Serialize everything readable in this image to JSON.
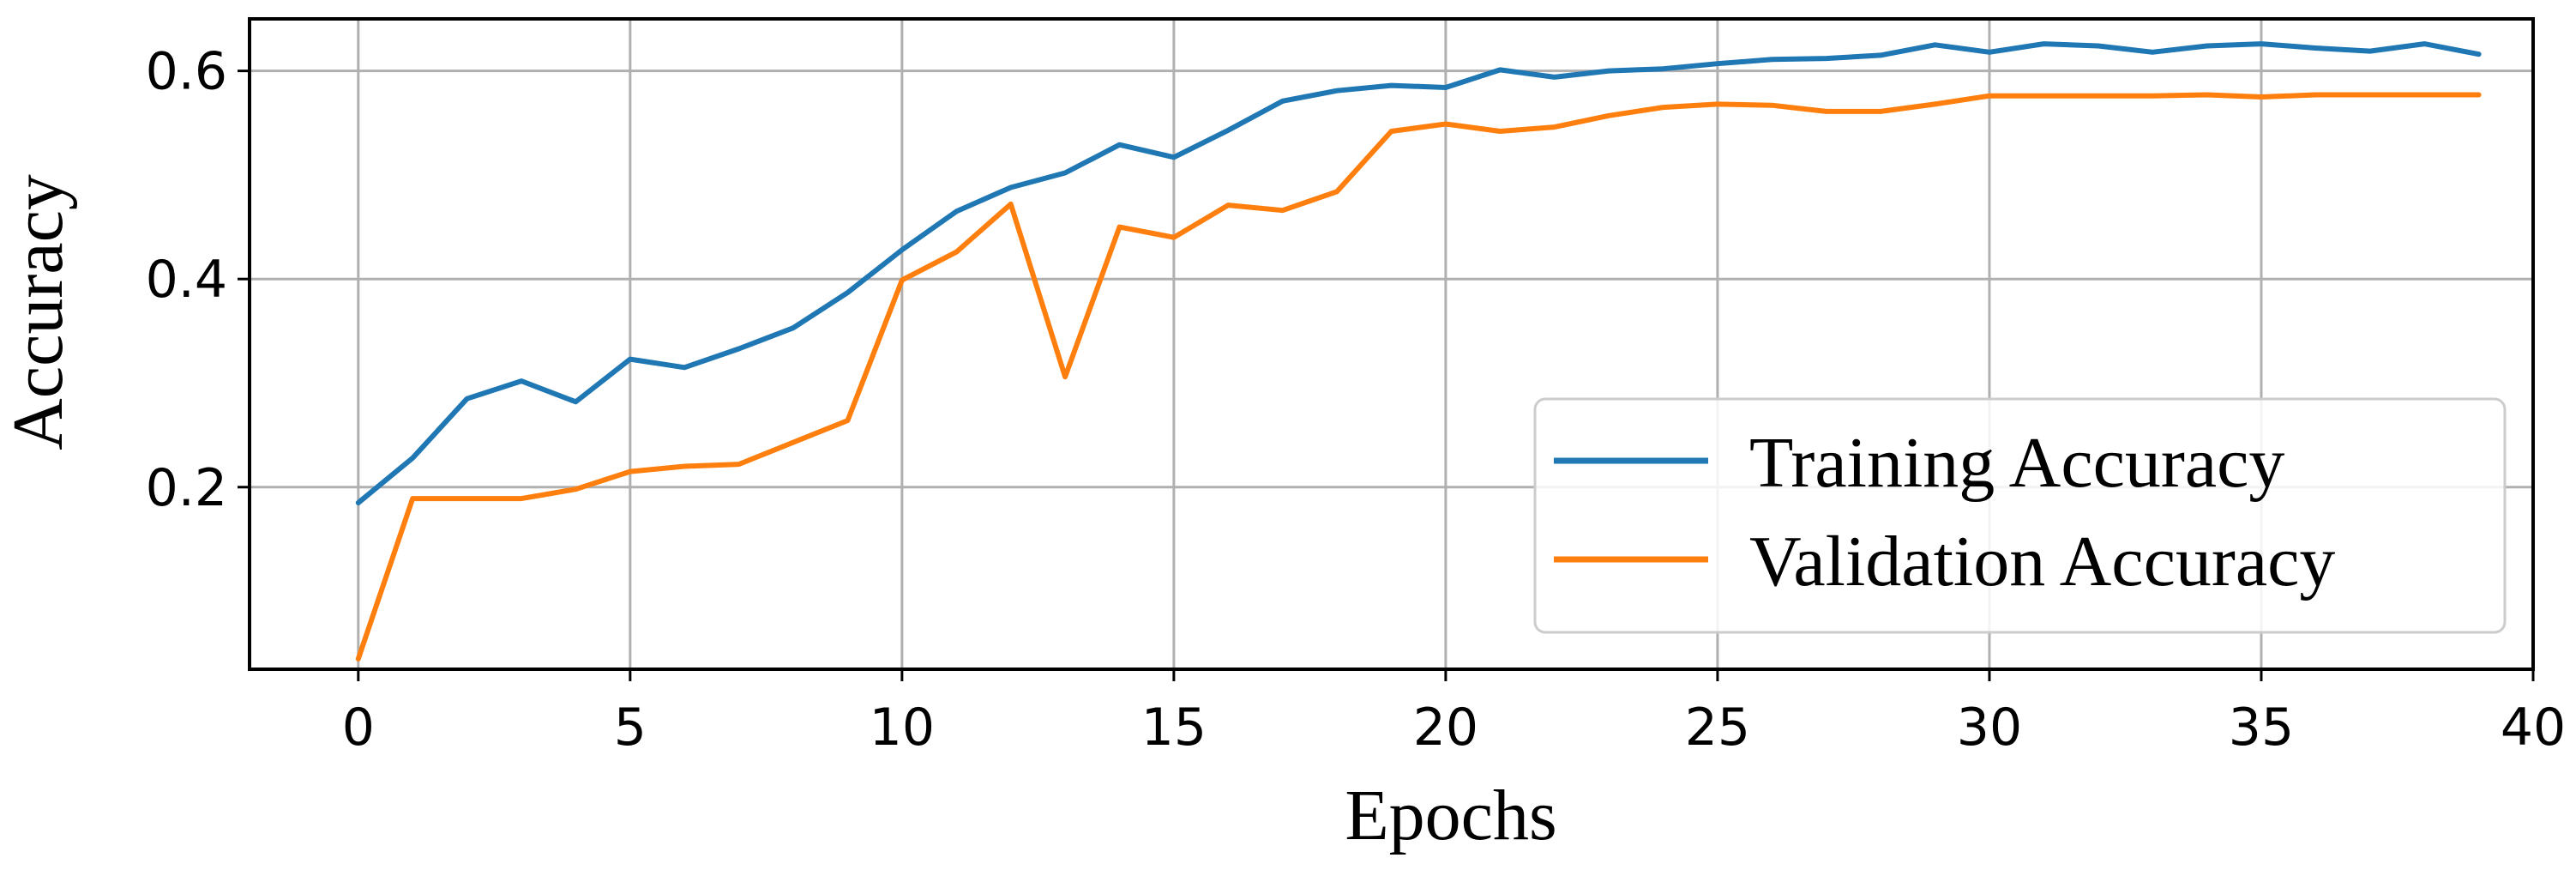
{
  "chart_data": {
    "type": "line",
    "xlabel": "Epochs",
    "ylabel": "Accuracy",
    "xlim": [
      -2,
      40
    ],
    "ylim": [
      0.025,
      0.65
    ],
    "xticks": [
      0,
      5,
      10,
      15,
      20,
      25,
      30,
      35,
      40
    ],
    "yticks": [
      0.2,
      0.4,
      0.6
    ],
    "ytick_labels": [
      "0.2",
      "0.4",
      "0.6"
    ],
    "grid": true,
    "legend_position": "lower-right",
    "x": [
      0,
      1,
      2,
      3,
      4,
      5,
      6,
      7,
      8,
      9,
      10,
      11,
      12,
      13,
      14,
      15,
      16,
      17,
      18,
      19,
      20,
      21,
      22,
      23,
      24,
      25,
      26,
      27,
      28,
      29,
      30,
      31,
      32,
      33,
      34,
      35,
      36,
      37,
      38,
      39
    ],
    "series": [
      {
        "name": "Training Accuracy",
        "color": "#1f77b4",
        "values": [
          0.185,
          0.228,
          0.285,
          0.302,
          0.282,
          0.323,
          0.315,
          0.333,
          0.353,
          0.387,
          0.428,
          0.465,
          0.488,
          0.502,
          0.529,
          0.517,
          0.543,
          0.571,
          0.581,
          0.586,
          0.584,
          0.601,
          0.594,
          0.6,
          0.602,
          0.607,
          0.611,
          0.612,
          0.615,
          0.625,
          0.618,
          0.626,
          0.624,
          0.618,
          0.624,
          0.626,
          0.622,
          0.619,
          0.626,
          0.616
        ]
      },
      {
        "name": "Validation Accuracy",
        "color": "#ff7f0e",
        "values": [
          0.035,
          0.189,
          0.189,
          0.189,
          0.198,
          0.215,
          0.22,
          0.222,
          0.243,
          0.264,
          0.399,
          0.426,
          0.472,
          0.306,
          0.45,
          0.44,
          0.471,
          0.466,
          0.484,
          0.542,
          0.549,
          0.542,
          0.546,
          0.557,
          0.565,
          0.568,
          0.567,
          0.561,
          0.561,
          0.568,
          0.576,
          0.576,
          0.576,
          0.576,
          0.577,
          0.575,
          0.577,
          0.577,
          0.577,
          0.577
        ]
      }
    ]
  }
}
